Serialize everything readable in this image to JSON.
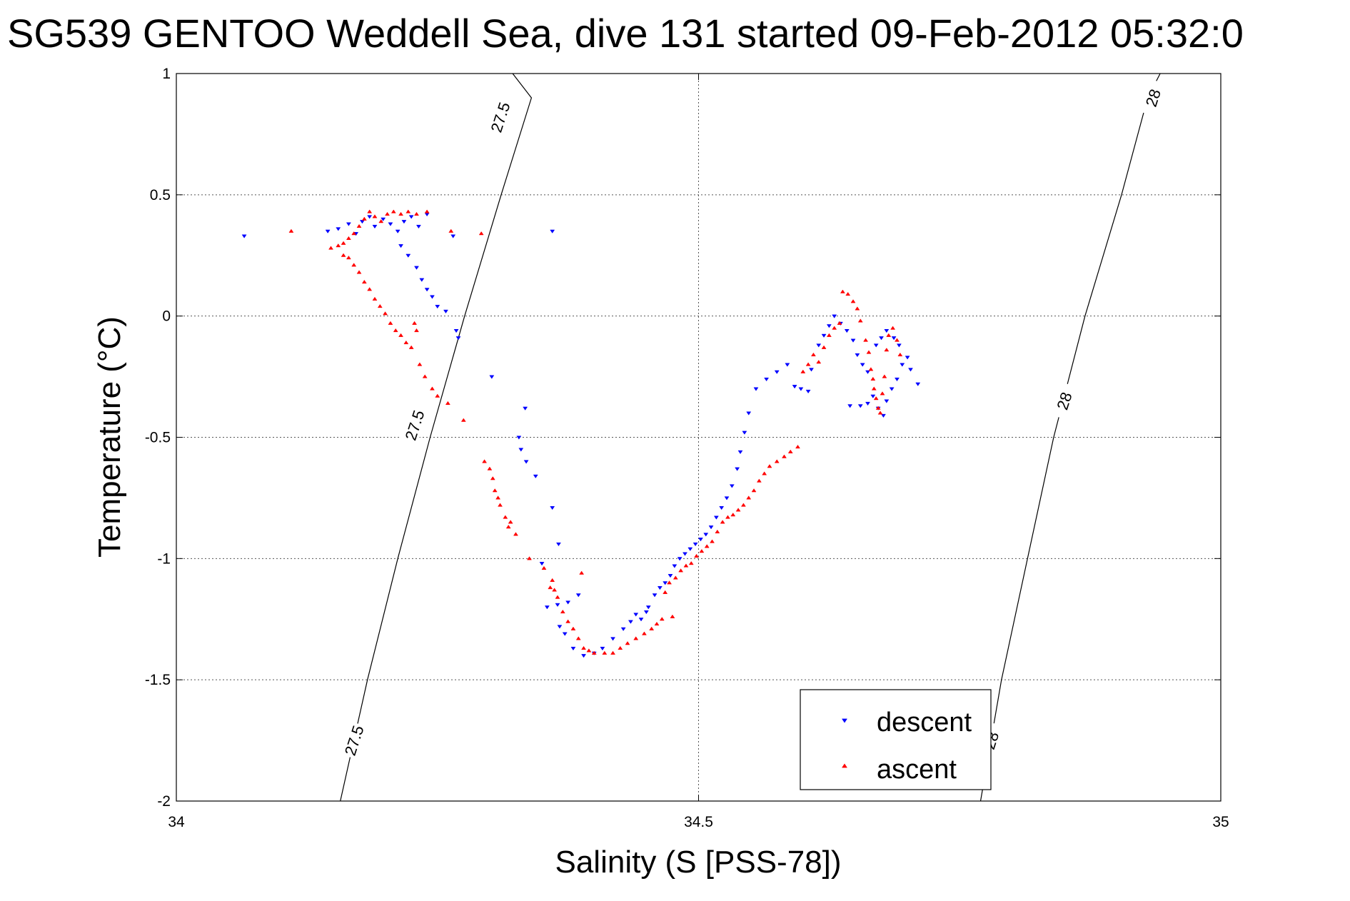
{
  "chart_data": {
    "type": "scatter",
    "title": "SG539 GENTOO Weddell Sea, dive 131 started 09-Feb-2012 05:32:0",
    "xlabel": "Salinity (S [PSS-78])",
    "ylabel": "Temperature (°C)",
    "xlim": [
      34,
      35
    ],
    "ylim": [
      -2,
      1
    ],
    "xticks": [
      "34",
      "34.5",
      "35"
    ],
    "yticks": [
      "1",
      "0.5",
      "0",
      "-0.5",
      "-1",
      "-1.5",
      "-2"
    ],
    "grid": true,
    "legend_position": "bottom-right",
    "isopycnals": [
      {
        "label": "27.5",
        "points": [
          [
            34.157,
            -2.0
          ],
          [
            34.183,
            -1.5
          ],
          [
            34.212,
            -1.0
          ],
          [
            34.243,
            -0.5
          ],
          [
            34.276,
            0.0
          ],
          [
            34.311,
            0.5
          ],
          [
            34.34,
            0.9
          ],
          [
            34.322,
            1.0
          ]
        ],
        "label_positions": [
          [
            34.17,
            -1.75
          ],
          [
            34.228,
            -0.45
          ],
          [
            34.31,
            0.82
          ]
        ]
      },
      {
        "label": "28",
        "points": [
          [
            34.77,
            -2.0
          ],
          [
            34.79,
            -1.5
          ],
          [
            34.815,
            -1.0
          ],
          [
            34.84,
            -0.5
          ],
          [
            34.87,
            0.0
          ],
          [
            34.905,
            0.5
          ],
          [
            34.93,
            0.9
          ],
          [
            34.942,
            1.0
          ]
        ],
        "label_positions": [
          [
            34.78,
            -1.75
          ],
          [
            34.85,
            -0.35
          ],
          [
            34.935,
            0.9
          ]
        ]
      }
    ],
    "series": [
      {
        "name": "descent",
        "color": "#0000ff",
        "marker": "triangle-down",
        "points": [
          [
            34.065,
            0.33
          ],
          [
            34.145,
            0.35
          ],
          [
            34.155,
            0.36
          ],
          [
            34.165,
            0.38
          ],
          [
            34.172,
            0.34
          ],
          [
            34.178,
            0.39
          ],
          [
            34.185,
            0.41
          ],
          [
            34.19,
            0.37
          ],
          [
            34.198,
            0.4
          ],
          [
            34.205,
            0.38
          ],
          [
            34.212,
            0.35
          ],
          [
            34.218,
            0.39
          ],
          [
            34.225,
            0.41
          ],
          [
            34.232,
            0.37
          ],
          [
            34.24,
            0.42
          ],
          [
            34.215,
            0.29
          ],
          [
            34.222,
            0.25
          ],
          [
            34.23,
            0.2
          ],
          [
            34.235,
            0.15
          ],
          [
            34.24,
            0.11
          ],
          [
            34.245,
            0.08
          ],
          [
            34.25,
            0.04
          ],
          [
            34.258,
            0.02
          ],
          [
            34.265,
            0.33
          ],
          [
            34.268,
            -0.06
          ],
          [
            34.27,
            -0.09
          ],
          [
            34.302,
            -0.25
          ],
          [
            34.334,
            -0.38
          ],
          [
            34.328,
            -0.5
          ],
          [
            34.33,
            -0.55
          ],
          [
            34.335,
            -0.6
          ],
          [
            34.344,
            -0.66
          ],
          [
            34.36,
            -0.79
          ],
          [
            34.366,
            -0.94
          ],
          [
            34.35,
            -1.02
          ],
          [
            34.36,
            0.35
          ],
          [
            34.355,
            -1.2
          ],
          [
            34.365,
            -1.19
          ],
          [
            34.375,
            -1.18
          ],
          [
            34.385,
            -1.15
          ],
          [
            34.367,
            -1.28
          ],
          [
            34.372,
            -1.31
          ],
          [
            34.38,
            -1.37
          ],
          [
            34.39,
            -1.4
          ],
          [
            34.4,
            -1.39
          ],
          [
            34.408,
            -1.37
          ],
          [
            34.418,
            -1.33
          ],
          [
            34.428,
            -1.29
          ],
          [
            34.435,
            -1.26
          ],
          [
            34.44,
            -1.23
          ],
          [
            34.445,
            -1.25
          ],
          [
            34.45,
            -1.22
          ],
          [
            34.452,
            -1.2
          ],
          [
            34.458,
            -1.15
          ],
          [
            34.463,
            -1.12
          ],
          [
            34.468,
            -1.1
          ],
          [
            34.473,
            -1.07
          ],
          [
            34.477,
            -1.03
          ],
          [
            34.482,
            -1.0
          ],
          [
            34.487,
            -0.98
          ],
          [
            34.492,
            -0.96
          ],
          [
            34.497,
            -0.94
          ],
          [
            34.502,
            -0.92
          ],
          [
            34.507,
            -0.9
          ],
          [
            34.512,
            -0.87
          ],
          [
            34.517,
            -0.83
          ],
          [
            34.522,
            -0.79
          ],
          [
            34.527,
            -0.75
          ],
          [
            34.532,
            -0.7
          ],
          [
            34.537,
            -0.63
          ],
          [
            34.54,
            -0.56
          ],
          [
            34.544,
            -0.48
          ],
          [
            34.548,
            -0.4
          ],
          [
            34.555,
            -0.3
          ],
          [
            34.565,
            -0.26
          ],
          [
            34.575,
            -0.23
          ],
          [
            34.585,
            -0.2
          ],
          [
            34.592,
            -0.29
          ],
          [
            34.598,
            -0.3
          ],
          [
            34.605,
            -0.31
          ],
          [
            34.608,
            -0.22
          ],
          [
            34.615,
            -0.12
          ],
          [
            34.62,
            -0.08
          ],
          [
            34.625,
            -0.04
          ],
          [
            34.63,
            0.0
          ],
          [
            34.636,
            -0.03
          ],
          [
            34.642,
            -0.06
          ],
          [
            34.648,
            -0.1
          ],
          [
            34.652,
            -0.16
          ],
          [
            34.657,
            -0.2
          ],
          [
            34.662,
            -0.23
          ],
          [
            34.645,
            -0.37
          ],
          [
            34.655,
            -0.37
          ],
          [
            34.662,
            -0.36
          ],
          [
            34.667,
            -0.33
          ],
          [
            34.672,
            -0.38
          ],
          [
            34.677,
            -0.41
          ],
          [
            34.68,
            -0.35
          ],
          [
            34.685,
            -0.3
          ],
          [
            34.69,
            -0.26
          ],
          [
            34.695,
            -0.2
          ],
          [
            34.67,
            -0.12
          ],
          [
            34.675,
            -0.09
          ],
          [
            34.68,
            -0.06
          ],
          [
            34.687,
            -0.09
          ],
          [
            34.692,
            -0.12
          ],
          [
            34.7,
            -0.17
          ],
          [
            34.703,
            -0.22
          ],
          [
            34.71,
            -0.28
          ]
        ]
      },
      {
        "name": "ascent",
        "color": "#ff0000",
        "marker": "triangle-up",
        "points": [
          [
            34.11,
            0.35
          ],
          [
            34.148,
            0.28
          ],
          [
            34.155,
            0.29
          ],
          [
            34.16,
            0.3
          ],
          [
            34.165,
            0.32
          ],
          [
            34.17,
            0.34
          ],
          [
            34.175,
            0.37
          ],
          [
            34.18,
            0.4
          ],
          [
            34.185,
            0.43
          ],
          [
            34.19,
            0.41
          ],
          [
            34.196,
            0.39
          ],
          [
            34.202,
            0.42
          ],
          [
            34.208,
            0.43
          ],
          [
            34.215,
            0.42
          ],
          [
            34.222,
            0.43
          ],
          [
            34.23,
            0.42
          ],
          [
            34.24,
            0.43
          ],
          [
            34.16,
            0.25
          ],
          [
            34.165,
            0.24
          ],
          [
            34.17,
            0.21
          ],
          [
            34.175,
            0.18
          ],
          [
            34.18,
            0.14
          ],
          [
            34.185,
            0.11
          ],
          [
            34.19,
            0.07
          ],
          [
            34.195,
            0.04
          ],
          [
            34.2,
            0.01
          ],
          [
            34.205,
            -0.03
          ],
          [
            34.21,
            -0.06
          ],
          [
            34.215,
            -0.08
          ],
          [
            34.22,
            -0.11
          ],
          [
            34.225,
            -0.13
          ],
          [
            34.228,
            -0.03
          ],
          [
            34.23,
            -0.06
          ],
          [
            34.233,
            -0.2
          ],
          [
            34.238,
            -0.25
          ],
          [
            34.245,
            -0.3
          ],
          [
            34.25,
            -0.33
          ],
          [
            34.26,
            -0.36
          ],
          [
            34.275,
            -0.43
          ],
          [
            34.292,
            0.34
          ],
          [
            34.263,
            0.35
          ],
          [
            34.295,
            -0.6
          ],
          [
            34.3,
            -0.63
          ],
          [
            34.303,
            -0.67
          ],
          [
            34.305,
            -0.72
          ],
          [
            34.308,
            -0.75
          ],
          [
            34.31,
            -0.78
          ],
          [
            34.315,
            -0.83
          ],
          [
            34.318,
            -0.87
          ],
          [
            34.32,
            -0.85
          ],
          [
            34.325,
            -0.9
          ],
          [
            34.338,
            -1.0
          ],
          [
            34.352,
            -1.04
          ],
          [
            34.358,
            -1.12
          ],
          [
            34.36,
            -1.09
          ],
          [
            34.362,
            -1.13
          ],
          [
            34.365,
            -1.16
          ],
          [
            34.37,
            -1.22
          ],
          [
            34.375,
            -1.26
          ],
          [
            34.38,
            -1.29
          ],
          [
            34.385,
            -1.33
          ],
          [
            34.39,
            -1.37
          ],
          [
            34.395,
            -1.38
          ],
          [
            34.4,
            -1.39
          ],
          [
            34.41,
            -1.39
          ],
          [
            34.418,
            -1.39
          ],
          [
            34.425,
            -1.37
          ],
          [
            34.432,
            -1.35
          ],
          [
            34.44,
            -1.33
          ],
          [
            34.448,
            -1.31
          ],
          [
            34.455,
            -1.29
          ],
          [
            34.46,
            -1.27
          ],
          [
            34.465,
            -1.25
          ],
          [
            34.475,
            -1.24
          ],
          [
            34.388,
            -1.06
          ],
          [
            34.468,
            -1.14
          ],
          [
            34.472,
            -1.1
          ],
          [
            34.478,
            -1.08
          ],
          [
            34.483,
            -1.05
          ],
          [
            34.488,
            -1.03
          ],
          [
            34.493,
            -1.02
          ],
          [
            34.498,
            -0.99
          ],
          [
            34.503,
            -0.97
          ],
          [
            34.508,
            -0.95
          ],
          [
            34.513,
            -0.93
          ],
          [
            34.518,
            -0.89
          ],
          [
            34.523,
            -0.85
          ],
          [
            34.528,
            -0.83
          ],
          [
            34.533,
            -0.82
          ],
          [
            34.538,
            -0.8
          ],
          [
            34.543,
            -0.78
          ],
          [
            34.548,
            -0.75
          ],
          [
            34.553,
            -0.72
          ],
          [
            34.558,
            -0.68
          ],
          [
            34.563,
            -0.65
          ],
          [
            34.568,
            -0.62
          ],
          [
            34.575,
            -0.6
          ],
          [
            34.582,
            -0.58
          ],
          [
            34.588,
            -0.56
          ],
          [
            34.595,
            -0.54
          ],
          [
            34.6,
            -0.23
          ],
          [
            34.605,
            -0.2
          ],
          [
            34.61,
            -0.16
          ],
          [
            34.615,
            -0.19
          ],
          [
            34.62,
            -0.13
          ],
          [
            34.625,
            -0.08
          ],
          [
            34.63,
            -0.05
          ],
          [
            34.635,
            -0.03
          ],
          [
            34.638,
            0.1
          ],
          [
            34.643,
            0.09
          ],
          [
            34.648,
            0.06
          ],
          [
            34.652,
            0.03
          ],
          [
            34.655,
            -0.02
          ],
          [
            34.66,
            -0.1
          ],
          [
            34.663,
            -0.15
          ],
          [
            34.665,
            -0.22
          ],
          [
            34.667,
            -0.26
          ],
          [
            34.668,
            -0.3
          ],
          [
            34.67,
            -0.34
          ],
          [
            34.672,
            -0.38
          ],
          [
            34.674,
            -0.4
          ],
          [
            34.676,
            -0.32
          ],
          [
            34.678,
            -0.25
          ],
          [
            34.68,
            -0.14
          ],
          [
            34.682,
            -0.08
          ],
          [
            34.686,
            -0.05
          ],
          [
            34.69,
            -0.1
          ],
          [
            34.693,
            -0.16
          ]
        ]
      }
    ]
  }
}
